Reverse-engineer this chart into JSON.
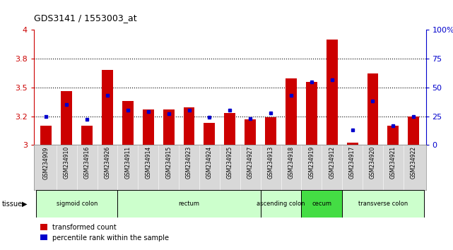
{
  "title": "GDS3141 / 1553003_at",
  "samples": [
    "GSM234909",
    "GSM234910",
    "GSM234916",
    "GSM234926",
    "GSM234911",
    "GSM234914",
    "GSM234915",
    "GSM234923",
    "GSM234924",
    "GSM234925",
    "GSM234927",
    "GSM234913",
    "GSM234918",
    "GSM234919",
    "GSM234912",
    "GSM234917",
    "GSM234920",
    "GSM234921",
    "GSM234922"
  ],
  "red_values": [
    3.17,
    3.47,
    3.17,
    3.65,
    3.38,
    3.31,
    3.31,
    3.33,
    3.19,
    3.28,
    3.22,
    3.24,
    3.58,
    3.55,
    3.92,
    3.02,
    3.62,
    3.17,
    3.25
  ],
  "blue_values": [
    25,
    35,
    22,
    43,
    30,
    29,
    27,
    30,
    24,
    30,
    23,
    28,
    43,
    55,
    57,
    13,
    38,
    17,
    25
  ],
  "ymin": 3.0,
  "ymax": 4.0,
  "yticks_left": [
    3.0,
    3.25,
    3.5,
    3.75,
    4.0
  ],
  "yticks_right": [
    0,
    25,
    50,
    75,
    100
  ],
  "tissue_groups": [
    {
      "label": "sigmoid colon",
      "start": 0,
      "end": 4,
      "color": "#ccffcc"
    },
    {
      "label": "rectum",
      "start": 4,
      "end": 11,
      "color": "#ccffcc"
    },
    {
      "label": "ascending colon",
      "start": 11,
      "end": 13,
      "color": "#ccffcc"
    },
    {
      "label": "cecum",
      "start": 13,
      "end": 15,
      "color": "#44dd44"
    },
    {
      "label": "transverse colon",
      "start": 15,
      "end": 19,
      "color": "#ccffcc"
    }
  ],
  "bar_color": "#cc0000",
  "dot_color": "#0000cc",
  "axis_color_left": "#cc0000",
  "axis_color_right": "#0000cc",
  "legend_red": "transformed count",
  "legend_blue": "percentile rank within the sample"
}
